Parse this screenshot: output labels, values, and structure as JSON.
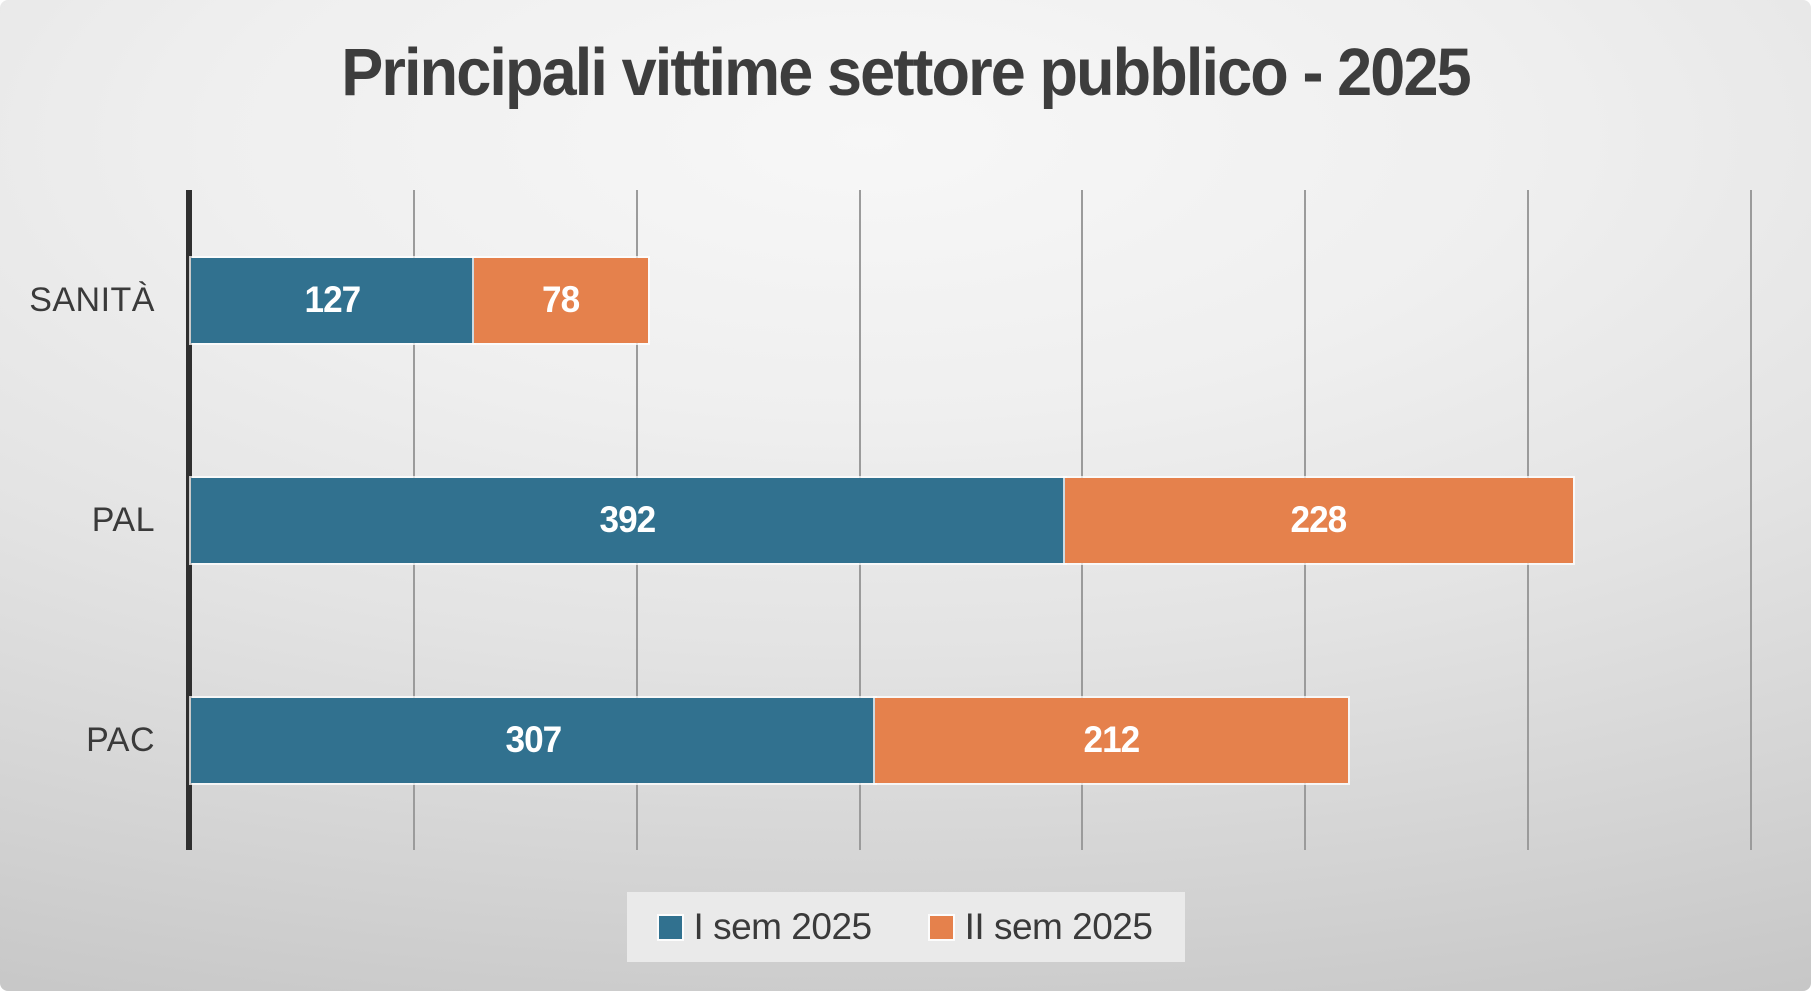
{
  "chart_data": {
    "type": "bar",
    "orientation": "horizontal",
    "stacked": true,
    "title": "Principali vittime settore pubblico - 2025",
    "categories": [
      "SANITÀ",
      "PAL",
      "PAC"
    ],
    "series": [
      {
        "name": "I sem 2025",
        "color": "#31718F",
        "values": [
          127,
          392,
          307
        ]
      },
      {
        "name": "II sem 2025",
        "color": "#E5814C",
        "values": [
          78,
          228,
          212
        ]
      }
    ],
    "totals": [
      205,
      620,
      519
    ],
    "xlim": [
      0,
      700
    ],
    "gridline_step": 100,
    "grid": true,
    "tick_labels_visible": false,
    "legend_position": "bottom",
    "data_labels": true,
    "data_label_color": "#ffffff",
    "title_color": "#3d3d3d"
  }
}
